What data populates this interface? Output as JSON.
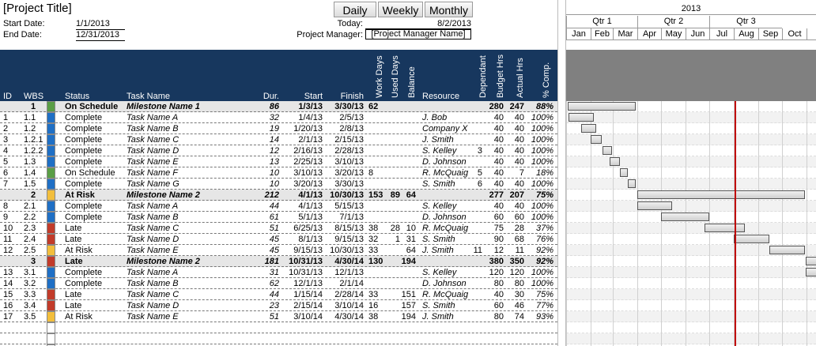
{
  "header": {
    "title": "[Project Title]",
    "start_date_label": "Start Date:",
    "start_date": "1/1/2013",
    "end_date_label": "End Date:",
    "end_date": "12/31/2013",
    "buttons": [
      "Daily",
      "Weekly",
      "Monthly"
    ],
    "today_label": "Today:",
    "today": "8/2/2013",
    "manager_label": "Project Manager:",
    "manager": "[Project Manager Name]"
  },
  "gantt_header": {
    "year": "2013",
    "quarters": [
      "Qtr 1",
      "Qtr 2",
      "Qtr 3"
    ],
    "months": [
      "Jan",
      "Feb",
      "Mar",
      "Apr",
      "May",
      "Jun",
      "Jul",
      "Aug",
      "Sep",
      "Oct",
      "N"
    ]
  },
  "table": {
    "columns": [
      "ID",
      "WBS",
      "Status",
      "Task Name",
      "Dur.",
      "Start",
      "Finish",
      "Work Days",
      "Used Days",
      "Balance",
      "Resource",
      "Dependant",
      "Budget Hrs",
      "Actual Hrs",
      "% Comp."
    ],
    "rows": [
      {
        "color": "#5a9e46",
        "cells": [
          null,
          "1",
          "On Schedule",
          "Milestone Name 1",
          "86",
          "1/3/13",
          "3/30/13",
          "62",
          null,
          null,
          null,
          null,
          "280",
          "247",
          "88%"
        ]
      },
      {
        "color": "#1f6fc5",
        "cells": [
          "1",
          "1.1",
          "Complete",
          "Task Name A",
          "32",
          "1/4/13",
          "2/5/13",
          null,
          null,
          null,
          "J. Bob",
          null,
          "40",
          "40",
          "100%"
        ]
      },
      {
        "color": "#1f6fc5",
        "cells": [
          "2",
          "1.2",
          "Complete",
          "Task Name B",
          "19",
          "1/20/13",
          "2/8/13",
          null,
          null,
          null,
          "Company X",
          null,
          "40",
          "40",
          "100%"
        ]
      },
      {
        "color": "#1f6fc5",
        "cells": [
          "3",
          "1.2.1",
          "Complete",
          "Task Name C",
          "14",
          "2/1/13",
          "2/15/13",
          null,
          null,
          null,
          "J. Smith",
          null,
          "40",
          "40",
          "100%"
        ]
      },
      {
        "color": "#1f6fc5",
        "cells": [
          "4",
          "1.2.2",
          "Complete",
          "Task Name D",
          "12",
          "2/16/13",
          "2/28/13",
          null,
          null,
          null,
          "S. Kelley",
          "3",
          "40",
          "40",
          "100%"
        ]
      },
      {
        "color": "#1f6fc5",
        "cells": [
          "5",
          "1.3",
          "Complete",
          "Task Name E",
          "13",
          "2/25/13",
          "3/10/13",
          null,
          null,
          null,
          "D. Johnson",
          null,
          "40",
          "40",
          "100%"
        ]
      },
      {
        "color": "#5a9e46",
        "cells": [
          "6",
          "1.4",
          "On Schedule",
          "Task Name F",
          "10",
          "3/10/13",
          "3/20/13",
          "8",
          null,
          null,
          "R. McQuaig",
          "5",
          "40",
          "7",
          "18%"
        ]
      },
      {
        "color": "#1f6fc5",
        "cells": [
          "7",
          "1.5",
          "Complete",
          "Task Name G",
          "10",
          "3/20/13",
          "3/30/13",
          null,
          null,
          null,
          "S. Smith",
          "6",
          "40",
          "40",
          "100%"
        ]
      },
      {
        "color": "#f2be3c",
        "cells": [
          null,
          "2",
          "At Risk",
          "Milestone Name 2",
          "212",
          "4/1/13",
          "10/30/13",
          "153",
          "89",
          "64",
          null,
          null,
          "277",
          "207",
          "75%"
        ]
      },
      {
        "color": "#1f6fc5",
        "cells": [
          "8",
          "2.1",
          "Complete",
          "Task Name A",
          "44",
          "4/1/13",
          "5/15/13",
          null,
          null,
          null,
          "S. Kelley",
          null,
          "40",
          "40",
          "100%"
        ]
      },
      {
        "color": "#1f6fc5",
        "cells": [
          "9",
          "2.2",
          "Complete",
          "Task Name B",
          "61",
          "5/1/13",
          "7/1/13",
          null,
          null,
          null,
          "D. Johnson",
          null,
          "60",
          "60",
          "100%"
        ]
      },
      {
        "color": "#c23b2a",
        "cells": [
          "10",
          "2.3",
          "Late",
          "Task Name C",
          "51",
          "6/25/13",
          "8/15/13",
          "38",
          "28",
          "10",
          "R. McQuaig",
          null,
          "75",
          "28",
          "37%"
        ]
      },
      {
        "color": "#c23b2a",
        "cells": [
          "11",
          "2.4",
          "Late",
          "Task Name D",
          "45",
          "8/1/13",
          "9/15/13",
          "32",
          "1",
          "31",
          "S. Smith",
          null,
          "90",
          "68",
          "76%"
        ]
      },
      {
        "color": "#f2be3c",
        "cells": [
          "12",
          "2.5",
          "At Risk",
          "Task Name E",
          "45",
          "9/15/13",
          "10/30/13",
          "33",
          null,
          "64",
          "J. Smith",
          "11",
          "12",
          "11",
          "92%"
        ]
      },
      {
        "color": "#c23b2a",
        "cells": [
          null,
          "3",
          "Late",
          "Milestone Name 2",
          "181",
          "10/31/13",
          "4/30/14",
          "130",
          null,
          "194",
          null,
          null,
          "380",
          "350",
          "92%"
        ]
      },
      {
        "color": "#1f6fc5",
        "cells": [
          "13",
          "3.1",
          "Complete",
          "Task Name A",
          "31",
          "10/31/13",
          "12/1/13",
          null,
          null,
          null,
          "S. Kelley",
          null,
          "120",
          "120",
          "100%"
        ]
      },
      {
        "color": "#1f6fc5",
        "cells": [
          "14",
          "3.2",
          "Complete",
          "Task Name B",
          "62",
          "12/1/13",
          "2/1/14",
          null,
          null,
          null,
          "D. Johnson",
          null,
          "80",
          "80",
          "100%"
        ]
      },
      {
        "color": "#c23b2a",
        "cells": [
          "15",
          "3.3",
          "Late",
          "Task Name C",
          "44",
          "1/15/14",
          "2/28/14",
          "33",
          null,
          "151",
          "R. McQuaig",
          null,
          "40",
          "30",
          "75%"
        ]
      },
      {
        "color": "#c23b2a",
        "cells": [
          "16",
          "3.4",
          "Late",
          "Task Name D",
          "23",
          "2/15/14",
          "3/10/14",
          "16",
          null,
          "157",
          "S. Smith",
          null,
          "60",
          "46",
          "77%"
        ]
      },
      {
        "color": "#f2be3c",
        "cells": [
          "17",
          "3.5",
          "At Risk",
          "Task Name E",
          "51",
          "3/10/14",
          "4/30/14",
          "38",
          null,
          "194",
          "J. Smith",
          null,
          "80",
          "74",
          "93%"
        ]
      }
    ]
  }
}
